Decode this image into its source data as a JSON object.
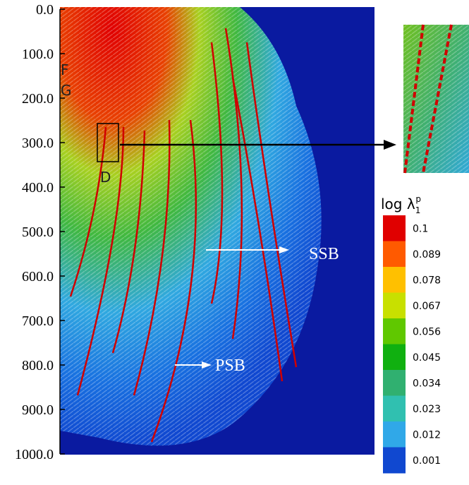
{
  "chart_data": {
    "type": "contour",
    "ylim": [
      0,
      1000
    ],
    "yticks": [
      {
        "value": 0,
        "label": "0.0"
      },
      {
        "value": 100,
        "label": "100.0"
      },
      {
        "value": 200,
        "label": "200.0"
      },
      {
        "value": 300,
        "label": "300.0"
      },
      {
        "value": 400,
        "label": "400.0"
      },
      {
        "value": 500,
        "label": "500.0"
      },
      {
        "value": 600,
        "label": "600.0"
      },
      {
        "value": 700,
        "label": "700.0"
      },
      {
        "value": 800,
        "label": "800.0"
      },
      {
        "value": 900,
        "label": "900.0"
      },
      {
        "value": 1000,
        "label": "1000.0"
      }
    ],
    "colorbar": {
      "title": "log λ",
      "title_sub": "1",
      "title_sup": "p",
      "levels": [
        0.1,
        0.089,
        0.078,
        0.067,
        0.056,
        0.045,
        0.034,
        0.023,
        0.012,
        0.001
      ],
      "colors": [
        "#e00000",
        "#ff5a00",
        "#ffc000",
        "#c8e000",
        "#60c800",
        "#10b010",
        "#30b070",
        "#30c0b0",
        "#30a8e8",
        "#1048d0"
      ]
    },
    "annotations": {
      "f": "F",
      "g": "G",
      "d": "D",
      "ssb": "SSB",
      "psb": "PSB"
    }
  }
}
